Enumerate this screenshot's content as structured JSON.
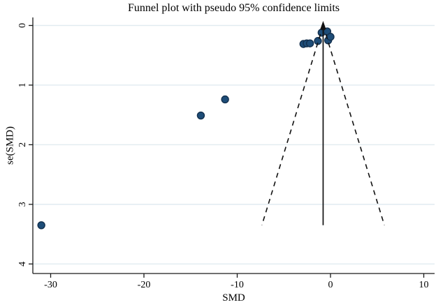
{
  "title": "Funnel plot with pseudo 95% confidence limits",
  "chart_data": {
    "type": "scatter",
    "subtype": "funnel-plot",
    "title": "Funnel plot with pseudo 95% confidence limits",
    "xlabel": "SMD",
    "ylabel": "se(SMD)",
    "x_ticks": [
      -30,
      -20,
      -10,
      0,
      10
    ],
    "y_ticks": [
      0,
      1,
      2,
      3,
      4
    ],
    "xlim": [
      -31.9,
      11.2
    ],
    "ylim": [
      0,
      4.16
    ],
    "y_axis_inverted": true,
    "grid": "horizontal-only",
    "legend": "none",
    "points": [
      {
        "smd": -31.0,
        "se": 3.35
      },
      {
        "smd": -13.9,
        "se": 1.51
      },
      {
        "smd": -11.3,
        "se": 1.24
      },
      {
        "smd": -2.9,
        "se": 0.31
      },
      {
        "smd": -2.55,
        "se": 0.3
      },
      {
        "smd": -2.2,
        "se": 0.3
      },
      {
        "smd": -1.35,
        "se": 0.26
      },
      {
        "smd": -0.95,
        "se": 0.12
      },
      {
        "smd": -0.35,
        "se": 0.1
      },
      {
        "smd": -0.25,
        "se": 0.25
      },
      {
        "smd": 0.0,
        "se": 0.19
      }
    ],
    "pooled_effect_smd": -0.79,
    "funnel": {
      "ci_multiplier": 1.96,
      "max_se": 3.35,
      "line_style": "dashed"
    },
    "pooled_line": {
      "style": "solid",
      "arrow": "up"
    },
    "colors": {
      "marker_fill": "#1e4d78",
      "marker_stroke": "#13304e",
      "grid_line": "#e1ebf0",
      "axis_line": "#1a1a1a",
      "funnel_line": "#111111",
      "background": "#ffffff"
    }
  }
}
